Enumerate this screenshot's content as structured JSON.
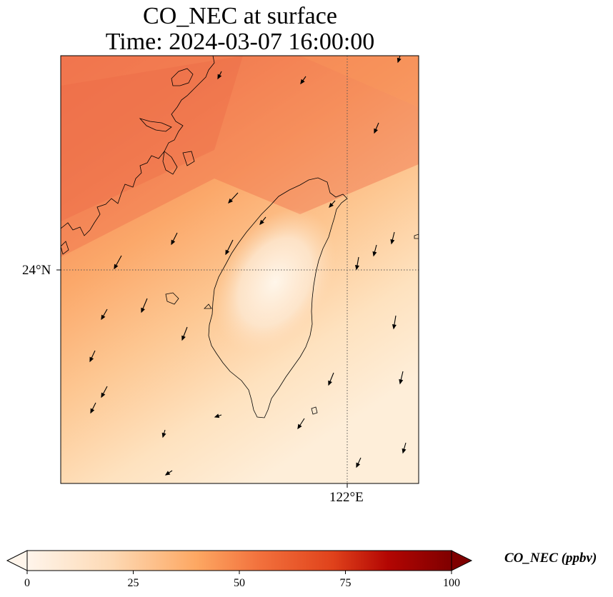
{
  "map": {
    "title_line1": "CO_NEC at surface",
    "title_line2": "Time: 2024-03-07 16:00:00",
    "lat_label": "24°N",
    "lon_label": "122°E"
  },
  "colorbar": {
    "title": "CO_NEC (ppbv)",
    "ticks": [
      "0",
      "25",
      "50",
      "75",
      "100"
    ],
    "min": 0,
    "max": 100,
    "colors": [
      "#fff5eb",
      "#fdd9b4",
      "#fda762",
      "#f2703c",
      "#d94801",
      "#a30f04",
      "#7f0000"
    ]
  },
  "colors": {
    "high": "#f07050",
    "mid": "#fca366",
    "low": "#feecd5",
    "coast": "#000000",
    "grid": "#555555"
  }
}
